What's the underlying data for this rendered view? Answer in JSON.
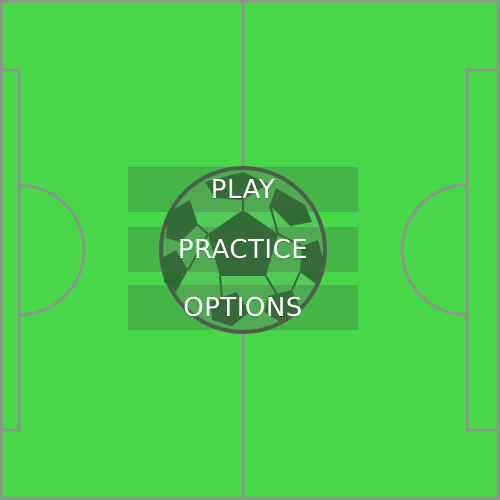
{
  "colors": {
    "pitch": "#47d84a",
    "lines": "#8a968a",
    "ball_dark": "#2f6b33",
    "ball_light": "#55c85a",
    "ball_outline": "#4e5a4e",
    "button_overlay": "rgba(70,110,70,0.33)",
    "text": "#ffffff"
  },
  "menu": {
    "play_label": "PLAY",
    "practice_label": "PRACTICE",
    "options_label": "OPTIONS"
  },
  "icons": {
    "logo": "soccer-ball-icon"
  }
}
